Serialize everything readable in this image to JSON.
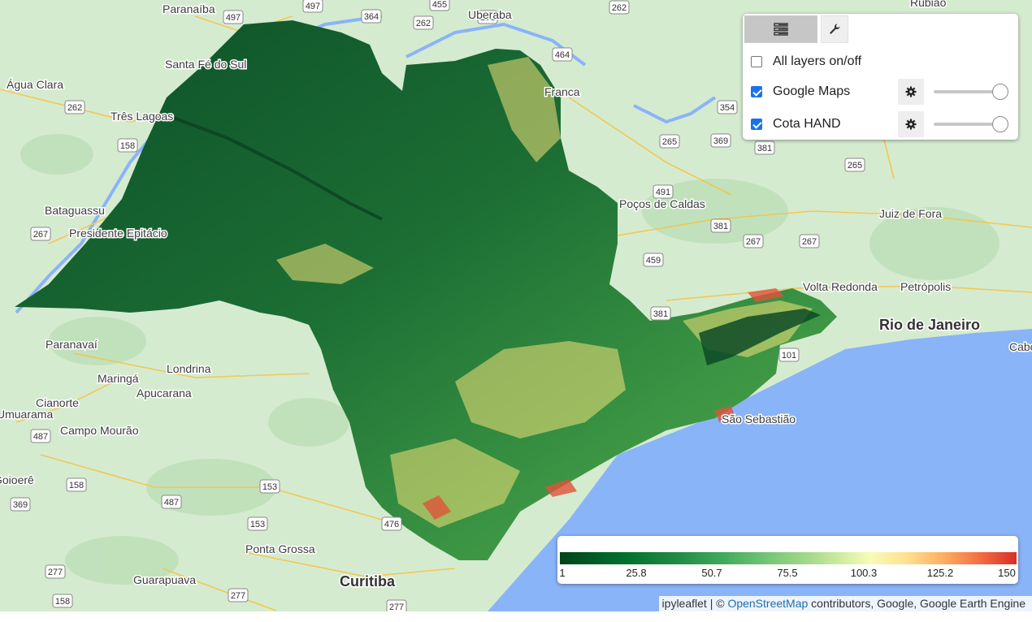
{
  "map": {
    "colors": {
      "land": "#d7ecd3",
      "water": "#8ab4f8",
      "region_dark": "#0f5a2e",
      "region_light": "#2f8a40"
    },
    "cities": [
      "Paranaíba",
      "Uberaba",
      "Santa Fé do Sul",
      "Água Clara",
      "Três Lagoas",
      "Bataguassu",
      "Presidente Epitácio",
      "Juiz de Fora",
      "Volta Redonda",
      "Petrópolis",
      "Rio de Janeiro",
      "Cabo Frio",
      "Paranavaí",
      "Maringá",
      "Londrina",
      "Apucarana",
      "Cianorte",
      "Umuarama",
      "Campo Mourão",
      "Ponta Grossa",
      "Guarapuava",
      "Curitiba",
      "São Sebastião",
      "Poços de Caldas",
      "Franca",
      "Rubião",
      "Goioerê"
    ],
    "road_shields": [
      "497",
      "497",
      "364",
      "455",
      "262",
      "262",
      "464",
      "262",
      "354",
      "265",
      "369",
      "381",
      "491",
      "381",
      "267",
      "267",
      "459",
      "381",
      "265",
      "101",
      "158",
      "262",
      "267",
      "487",
      "158",
      "369",
      "153",
      "153",
      "487",
      "476",
      "277",
      "277",
      "158",
      "277"
    ]
  },
  "layer_control": {
    "buttons": {
      "layers_icon": "layers-icon",
      "wrench_icon": "wrench-icon"
    },
    "all_layers_label": "All layers on/off",
    "all_layers_checked": false,
    "layers": [
      {
        "name": "Google Maps",
        "checked": true,
        "opacity": 1.0
      },
      {
        "name": "Cota HAND",
        "checked": true,
        "opacity": 1.0
      }
    ]
  },
  "legend": {
    "min": "1",
    "max": "150",
    "ticks": [
      "1",
      "25.8",
      "50.7",
      "75.5",
      "100.3",
      "125.2",
      "150"
    ],
    "palette": [
      "#00441b",
      "#238b45",
      "#78c679",
      "#f7fcb9",
      "#fdae61",
      "#d73027"
    ]
  },
  "attribution": {
    "prefix": "ipyleaflet | © ",
    "link": "OpenStreetMap",
    "suffix": " contributors, Google, Google Earth Engine"
  }
}
